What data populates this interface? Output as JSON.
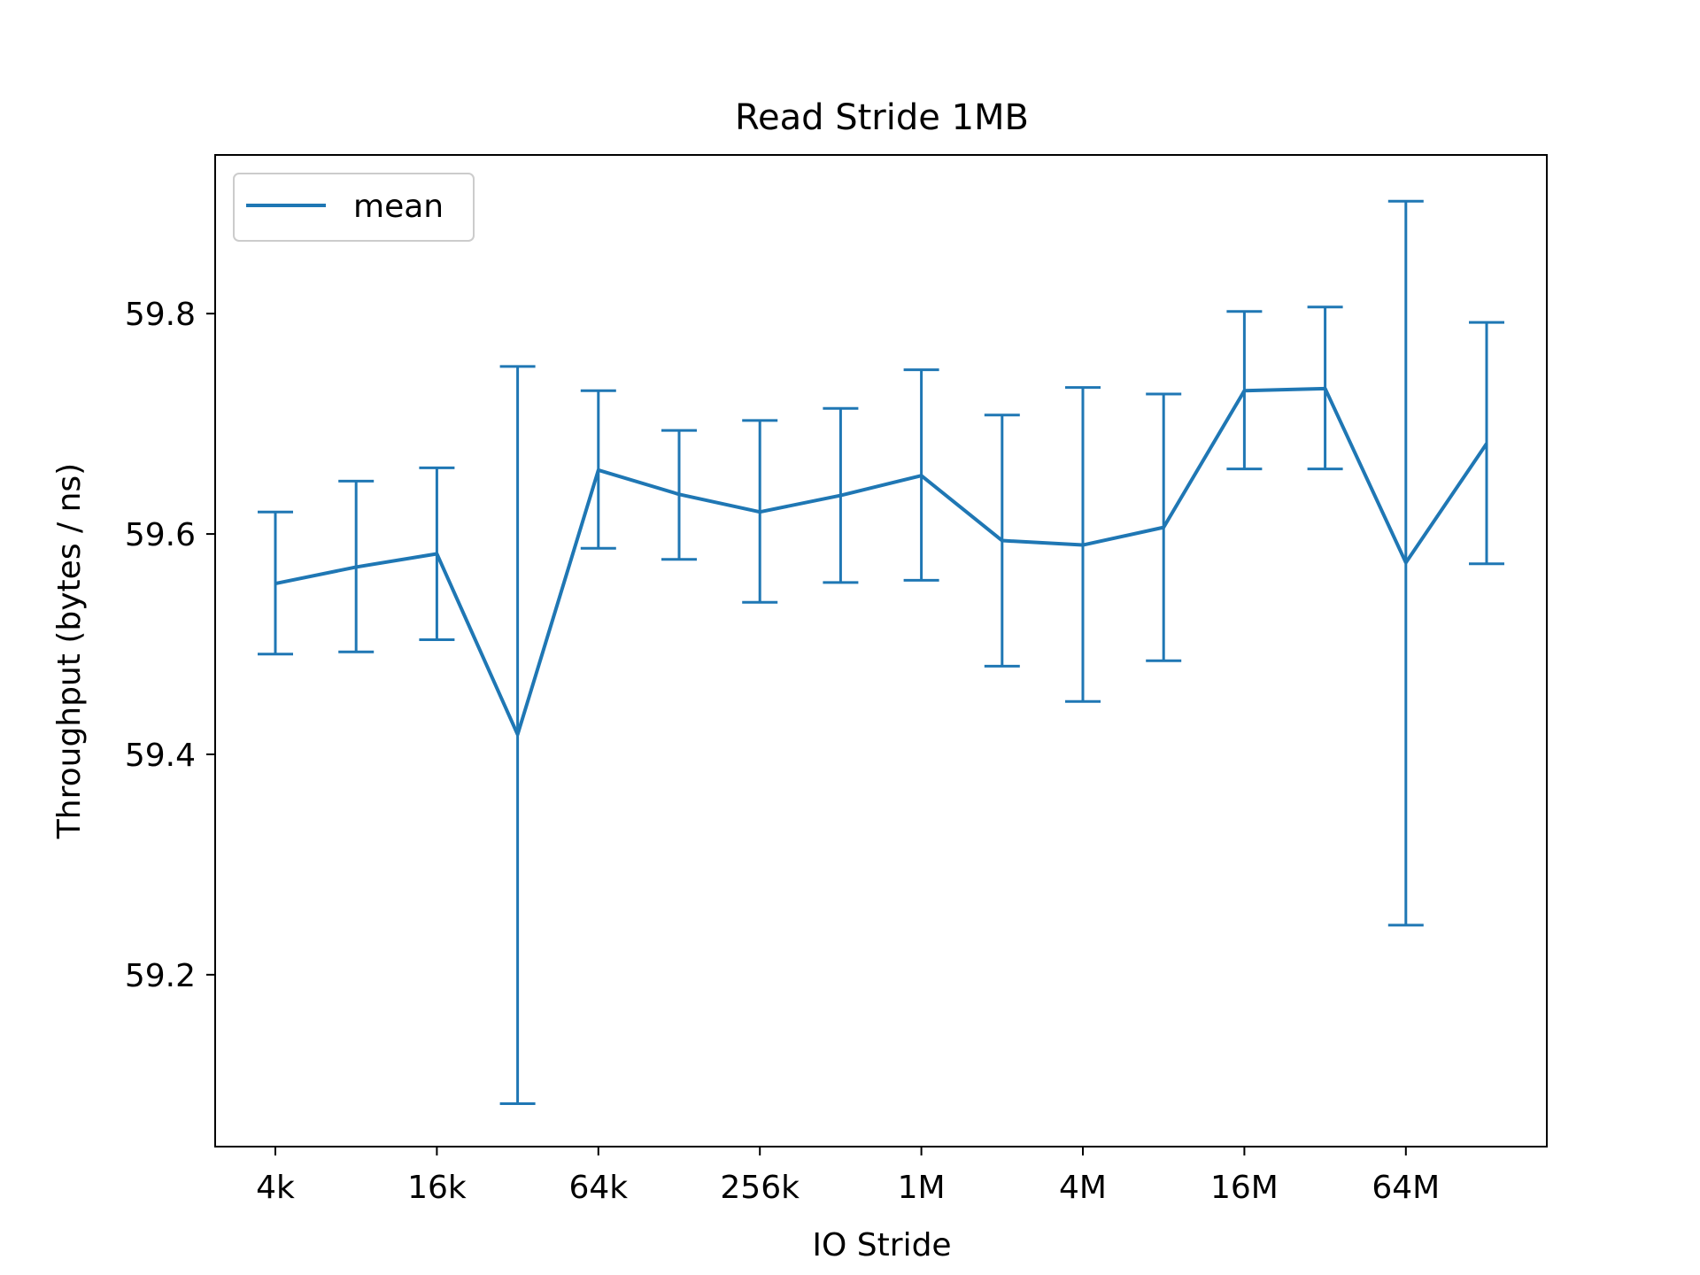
{
  "chart_data": {
    "type": "line",
    "title": "Read Stride 1MB",
    "xlabel": "IO Stride",
    "ylabel": "Throughput (bytes / ns)",
    "x_scale": "log2",
    "x": [
      "4k",
      "8k",
      "16k",
      "32k",
      "64k",
      "128k",
      "256k",
      "512k",
      "1M",
      "2M",
      "4M",
      "8M",
      "16M",
      "32M",
      "64M",
      "128M"
    ],
    "x_ticks": [
      "4k",
      "16k",
      "64k",
      "256k",
      "1M",
      "4M",
      "16M",
      "64M"
    ],
    "y_ticks": [
      59.2,
      59.4,
      59.6,
      59.8
    ],
    "ylim": [
      59.044,
      59.944
    ],
    "grid": false,
    "legend_position": "top-left",
    "series": [
      {
        "name": "mean",
        "color": "#1f77b4",
        "values": [
          59.555,
          59.57,
          59.582,
          59.418,
          59.658,
          59.636,
          59.62,
          59.635,
          59.653,
          59.594,
          59.59,
          59.606,
          59.73,
          59.732,
          59.574,
          59.682
        ],
        "error_low": [
          59.491,
          59.493,
          59.504,
          59.083,
          59.587,
          59.577,
          59.538,
          59.556,
          59.558,
          59.48,
          59.448,
          59.485,
          59.659,
          59.659,
          59.245,
          59.573
        ],
        "error_high": [
          59.62,
          59.648,
          59.66,
          59.752,
          59.73,
          59.694,
          59.703,
          59.714,
          59.749,
          59.708,
          59.733,
          59.727,
          59.802,
          59.806,
          59.902,
          59.792
        ]
      }
    ]
  }
}
